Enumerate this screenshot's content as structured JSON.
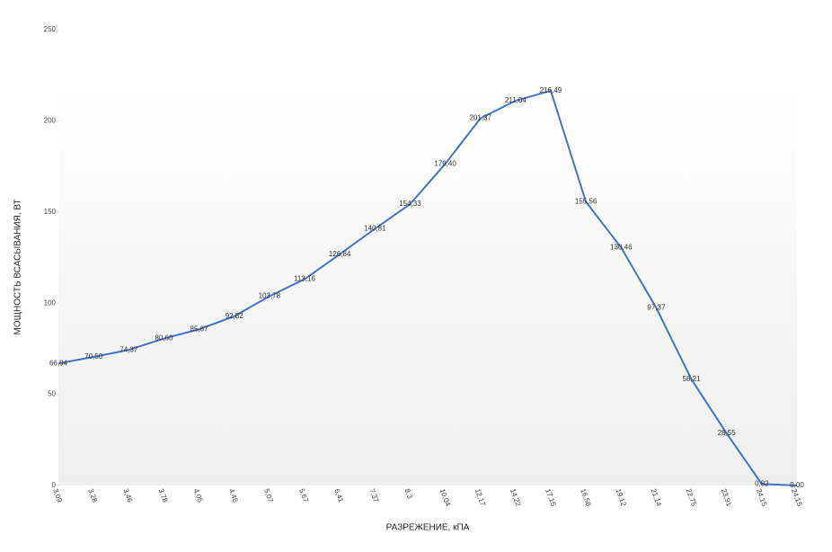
{
  "chart_data": {
    "type": "line",
    "x_label": "РАЗРЕЖЕНИЕ, кПА",
    "y_label": "МОЩНОСТЬ ВСАСЫВАНИЯ, ВТ",
    "categories": [
      "3,09",
      "3,28",
      "3,46",
      "3,78",
      "4,05",
      "4,46",
      "5,07",
      "5,67",
      "6,41",
      "7,37",
      "8,3",
      "10,04",
      "12,17",
      "14,22",
      "17,15",
      "16,58",
      "19,12",
      "21,14",
      "22,75",
      "23,91",
      "24,15",
      "24,15"
    ],
    "series": [
      {
        "color": "#4472c4",
        "values": [
          66.94,
          70.5,
          74.37,
          80.6,
          85.67,
          92.82,
          103.78,
          113.16,
          126.84,
          140.81,
          154.33,
          176.4,
          201.37,
          211.04,
          216.49,
          155.56,
          130.46,
          97.37,
          58.21,
          28.55,
          0.82,
          0.0
        ],
        "value_labels": [
          "66,94",
          "70,50",
          "74,37",
          "80,60",
          "85,67",
          "92,82",
          "103,78",
          "113,16",
          "126,84",
          "140,81",
          "154,33",
          "176,40",
          "201,37",
          "211,04",
          "216,49",
          "155,56",
          "130,46",
          "97,37",
          "58,21",
          "28,55",
          "0,82",
          "0,00"
        ]
      }
    ],
    "ylim": [
      0,
      250
    ],
    "yticks": [
      0,
      50,
      100,
      150,
      200,
      250
    ]
  }
}
